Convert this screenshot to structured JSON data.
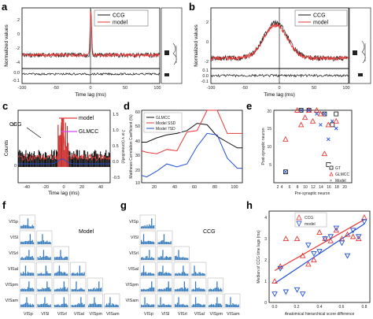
{
  "panel_labels": [
    "a",
    "b",
    "c",
    "d",
    "e",
    "f",
    "g",
    "h"
  ],
  "colors": {
    "ccg": "#111111",
    "model": "#e53935",
    "glmcc": "#e040fb",
    "blue": "#1f4fd6",
    "bar": "#3a7ebf"
  },
  "chart_data": [
    {
      "panel": "a",
      "type": "line",
      "xlabel": "Time lag (ms)",
      "ylabel": "Normalized values",
      "xticks": [
        "-100",
        "-50",
        "0",
        "50",
        "100"
      ],
      "yticks": [
        "2",
        "0",
        "-2",
        "-4"
      ],
      "lower_yticks": [
        "0.0",
        "-0.1"
      ],
      "legend": [
        "CCG",
        "model"
      ],
      "series": [
        {
          "name": "CCG",
          "note": "sharp peak at 0 lag",
          "peak_x": 0,
          "peak_y": 3.5,
          "baseline": -2.6
        },
        {
          "name": "model",
          "peak_x": 0,
          "peak_y": 3.3,
          "baseline": -2.6
        }
      ],
      "xlim": [
        -100,
        100
      ]
    },
    {
      "panel": "b",
      "type": "line",
      "xlabel": "Time lag (ms)",
      "ylabel": "Normalized values",
      "xticks": [
        "-100",
        "-50",
        "0",
        "50",
        "100"
      ],
      "yticks": [
        "2",
        "0",
        "-2"
      ],
      "lower_yticks": [
        "0.1",
        "0.0",
        "-0.1"
      ],
      "legend": [
        "CCG",
        "model"
      ],
      "series": [
        {
          "name": "CCG",
          "note": "broad hump centred near 0",
          "peak_x": -5,
          "peak_y": 2.3,
          "baseline": -1.4
        },
        {
          "name": "model",
          "peak_x": -5,
          "peak_y": 2.1,
          "baseline": -1.4
        }
      ],
      "xlim": [
        -100,
        100
      ]
    },
    {
      "panel": "c",
      "type": "line",
      "xlabel": "Time lag (ms)",
      "ylabel": "Counts",
      "y2label": "J or v (connectivity)",
      "xticks": [
        "-40",
        "-20",
        "0",
        "20",
        "40"
      ],
      "yticks": [
        "0",
        "50"
      ],
      "y2ticks": [
        "1.5",
        "1.0",
        "0.5",
        "0.0",
        "-0.5"
      ],
      "annotations": [
        "CCG",
        "model",
        "GLMCC"
      ],
      "xlim": [
        -50,
        50
      ]
    },
    {
      "panel": "d",
      "type": "line",
      "ylabel": "Matthews Correlation Coefficient (%)",
      "xticks": [
        "20",
        "40",
        "60",
        "80",
        "100"
      ],
      "yticks": [
        "60",
        "50",
        "40",
        "30",
        "20",
        "10"
      ],
      "legend": [
        "GLMCC",
        "Model SSD",
        "Model 7SD"
      ],
      "series": [
        {
          "name": "GLMCC",
          "x": [
            15,
            20,
            30,
            40,
            50,
            60,
            70,
            80,
            90,
            100,
            110,
            115
          ],
          "y": [
            38,
            38,
            41,
            43,
            44,
            46,
            51,
            50,
            42,
            38,
            34,
            34
          ]
        },
        {
          "name": "Model SSD",
          "x": [
            15,
            20,
            30,
            40,
            50,
            60,
            70,
            80,
            90,
            100,
            110,
            115
          ],
          "y": [
            32,
            31,
            30,
            33,
            32,
            45,
            46,
            60,
            60,
            44,
            44,
            44
          ]
        },
        {
          "name": "Model 7SD",
          "x": [
            15,
            20,
            30,
            40,
            50,
            60,
            70,
            80,
            90,
            100,
            110,
            115
          ],
          "y": [
            15,
            14,
            18,
            23,
            21,
            23,
            35,
            44,
            43,
            27,
            20,
            20
          ]
        }
      ],
      "ylim": [
        10,
        60
      ],
      "xlim": [
        15,
        115
      ]
    },
    {
      "panel": "e",
      "type": "scatter",
      "xlabel": "Pre-synaptic neuron",
      "ylabel": "Post-synaptic neuron",
      "xticks": [
        "2",
        "4",
        "6",
        "8",
        "10",
        "12",
        "14",
        "16",
        "18",
        "20"
      ],
      "yticks": [
        "5",
        "10",
        "15",
        "20"
      ],
      "legend": [
        "GT",
        "GLMCC",
        "Model"
      ],
      "series": [
        {
          "name": "GT",
          "x": [
            7,
            9,
            13,
            15,
            16,
            14,
            3
          ],
          "y": [
            20,
            20,
            19,
            16,
            19,
            5,
            3
          ]
        },
        {
          "name": "GLMCC",
          "x": [
            3,
            6,
            8,
            9,
            11,
            12,
            14,
            16,
            7,
            10,
            13
          ],
          "y": [
            12,
            20,
            18,
            20,
            20,
            19,
            16,
            17,
            16,
            17,
            8
          ]
        },
        {
          "name": "Model",
          "x": [
            3,
            7,
            9,
            11,
            13,
            15,
            16,
            14,
            12
          ],
          "y": [
            3,
            20,
            20,
            19,
            19,
            17,
            15,
            12,
            16
          ]
        }
      ],
      "xlim": [
        0,
        20
      ],
      "ylim": [
        0,
        20
      ]
    },
    {
      "panel": "f",
      "type": "bar",
      "title": "Model",
      "row_labels": [
        "VISp",
        "VISl",
        "VISrl",
        "VISal",
        "VISpm",
        "VISam"
      ],
      "col_labels": [
        "VISp",
        "VISl",
        "VISrl",
        "VISal",
        "VISpm",
        "VISam"
      ]
    },
    {
      "panel": "g",
      "type": "bar",
      "title": "CCG",
      "row_labels": [
        "VISp",
        "VISl",
        "VISrl",
        "VISal",
        "VISpm",
        "VISam"
      ],
      "col_labels": [
        "VISp",
        "VISl",
        "VISrl",
        "VISal",
        "VISpm",
        "VISam"
      ]
    },
    {
      "panel": "h",
      "type": "scatter",
      "xlabel": "Anatomical hierarchical score difference",
      "ylabel": "Median of CCG time lags (ms)",
      "xticks": [
        "0.0",
        "0.2",
        "0.4",
        "0.6",
        "0.8"
      ],
      "yticks": [
        "0",
        "1",
        "2",
        "3",
        "4"
      ],
      "legend": [
        "CCG",
        "model"
      ],
      "series": [
        {
          "name": "CCG",
          "x": [
            0.0,
            0.05,
            0.1,
            0.2,
            0.25,
            0.3,
            0.35,
            0.4,
            0.45,
            0.5,
            0.55,
            0.6,
            0.65,
            0.7,
            0.75,
            0.8
          ],
          "y": [
            1.0,
            1.7,
            3.0,
            3.0,
            2.2,
            1.8,
            2.0,
            3.3,
            3.0,
            2.9,
            3.4,
            3.0,
            3.2,
            3.1,
            3.0,
            4.0
          ]
        },
        {
          "name": "model",
          "x": [
            0.0,
            0.05,
            0.1,
            0.2,
            0.25,
            0.3,
            0.35,
            0.4,
            0.45,
            0.5,
            0.55,
            0.6,
            0.65,
            0.7,
            0.75,
            0.8
          ],
          "y": [
            0.4,
            1.6,
            0.5,
            0.6,
            0.4,
            2.7,
            2.3,
            2.4,
            3.0,
            3.1,
            3.5,
            2.8,
            2.2,
            3.4,
            3.1,
            3.8
          ]
        }
      ],
      "fits": [
        {
          "name": "CCG",
          "x": [
            0,
            0.8
          ],
          "y": [
            1.5,
            3.9
          ]
        },
        {
          "name": "model",
          "x": [
            0,
            0.8
          ],
          "y": [
            0.9,
            3.7
          ]
        }
      ],
      "xlim": [
        -0.05,
        0.85
      ],
      "ylim": [
        0,
        4.3
      ]
    }
  ]
}
